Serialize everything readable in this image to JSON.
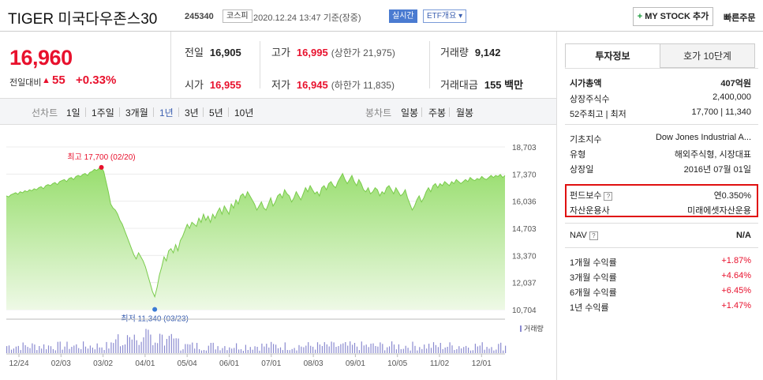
{
  "header": {
    "title": "TIGER 미국다우존스30",
    "code": "245340",
    "market": "코스피",
    "datetime": "2020.12.24 13:47 기준(장중)",
    "live": "실시간",
    "etf": "ETF개요 ▾",
    "mystock": "MY STOCK 추가",
    "mystock_plus": "+",
    "quick_order": "빠른주문"
  },
  "price": {
    "current": "16,960",
    "diff_label": "전일대비",
    "diff_arrow": "▲",
    "diff_value": "55",
    "diff_pct": "+0.33%"
  },
  "stats": {
    "prev_label": "전일",
    "prev": "16,905",
    "high_label": "고가",
    "high": "16,995",
    "high_sub": "(상한가 21,975)",
    "volume_label": "거래량",
    "volume": "9,142",
    "open_label": "시가",
    "open": "16,955",
    "low_label": "저가",
    "low": "16,945",
    "low_sub": "(하한가 11,835)",
    "amount_label": "거래대금",
    "amount": "155 백만"
  },
  "tabs": {
    "line_chart": "선차트",
    "d1": "1일",
    "w1": "1주일",
    "m3": "3개월",
    "y1": "1년",
    "y3": "3년",
    "y5": "5년",
    "y10": "10년",
    "candle": "봉차트",
    "daily": "일봉",
    "weekly": "주봉",
    "monthly": "월봉"
  },
  "chart_data": {
    "type": "area",
    "y_ticks": [
      "18,703",
      "17,370",
      "16,036",
      "14,703",
      "13,370",
      "12,037",
      "10,704"
    ],
    "ylim": [
      10704,
      18703
    ],
    "x_ticks": [
      "12/24",
      "02/03",
      "03/02",
      "04/01",
      "05/04",
      "06/01",
      "07/01",
      "08/03",
      "09/01",
      "10/05",
      "11/02",
      "12/01"
    ],
    "high_label": "최고 17,700 (02/20)",
    "low_label": "최저 11,340 (03/23)",
    "high_value": 17700,
    "low_value": 11340,
    "volume_label": "거래량",
    "values": [
      16300,
      16250,
      16350,
      16400,
      16450,
      16380,
      16500,
      16450,
      16550,
      16500,
      16600,
      16550,
      16650,
      16600,
      16700,
      16750,
      16650,
      16800,
      16850,
      16800,
      16900,
      16950,
      16850,
      17000,
      17050,
      17100,
      17000,
      17150,
      17200,
      17100,
      17250,
      17300,
      17250,
      17350,
      17400,
      17300,
      17450,
      17500,
      17600,
      17550,
      17650,
      17700,
      17500,
      17000,
      16500,
      15900,
      15700,
      15600,
      15400,
      15100,
      14900,
      14600,
      14300,
      14000,
      13700,
      13400,
      13200,
      13500,
      13300,
      13100,
      12800,
      12400,
      12000,
      11600,
      11340,
      11800,
      12400,
      12800,
      13300,
      13100,
      13600,
      13700,
      13500,
      13900,
      13600,
      14100,
      14300,
      14600,
      14900,
      14700,
      15000,
      14900,
      14800,
      15200,
      15000,
      15400,
      15100,
      15300,
      15000,
      15400,
      15200,
      15500,
      15700,
      15400,
      15800,
      15600,
      15400,
      15900,
      15700,
      16100,
      15900,
      16300,
      16400,
      16200,
      16500,
      16300,
      16100,
      15900,
      15600,
      15800,
      16000,
      15700,
      15600,
      15900,
      16200,
      15800,
      16000,
      16300,
      16400,
      16200,
      16600,
      16400,
      16300,
      16000,
      16200,
      16500,
      16300,
      16100,
      16400,
      16700,
      16500,
      16800,
      16600,
      16400,
      16500,
      16300,
      16700,
      16800,
      16600,
      16900,
      17000,
      16800,
      16700,
      17000,
      17200,
      17400,
      17100,
      16900,
      17100,
      17300,
      17000,
      16800,
      17100,
      16900,
      16600,
      16500,
      16700,
      16400,
      16500,
      16700,
      16600,
      16300,
      16500,
      16400,
      16700,
      16800,
      16600,
      16400,
      16700,
      16500,
      16300,
      16400,
      16600,
      16200,
      15900,
      15600,
      15800,
      16100,
      16300,
      16000,
      16200,
      16500,
      16700,
      16500,
      16800,
      16900,
      16700,
      16900,
      16800,
      17000,
      16900,
      16800,
      17000,
      16900,
      17100,
      17000,
      16900,
      17000,
      17100,
      17000,
      17200,
      17100,
      17050,
      17150,
      17100,
      17250,
      17150,
      17100,
      17200,
      17300,
      17200,
      17300,
      17250,
      17350,
      17200,
      17300
    ]
  },
  "right_panel": {
    "tab_info": "투자정보",
    "tab_quote": "호가 10단계",
    "market_cap_label": "시가총액",
    "market_cap": "407억원",
    "shares_label": "상장주식수",
    "shares": "2,400,000",
    "range52_label": "52주최고 | 최저",
    "range52": "17,700 | 11,340",
    "base_index_label": "기초지수",
    "base_index": "Dow Jones Industrial A...",
    "type_label": "유형",
    "type": "해외주식형, 시장대표",
    "listed_label": "상장일",
    "listed": "2016년 07월 01일",
    "fee_label": "펀드보수",
    "fee": "연0.350%",
    "manager_label": "자산운용사",
    "manager": "미래에셋자산운용",
    "nav_label": "NAV",
    "nav": "N/A",
    "qmark": "?",
    "r1m_label": "1개월 수익률",
    "r1m": "+1.87%",
    "r3m_label": "3개월 수익률",
    "r3m": "+4.64%",
    "r6m_label": "6개월 수익률",
    "r6m": "+6.45%",
    "r1y_label": "1년 수익률",
    "r1y": "+1.47%"
  }
}
